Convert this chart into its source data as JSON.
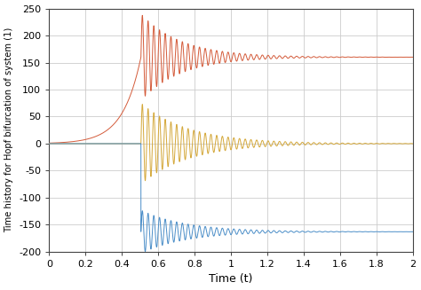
{
  "title": "",
  "xlabel": "Time (t)",
  "ylabel": "Time history for Hopf bifurcation of system (1)",
  "xlim": [
    0,
    2
  ],
  "ylim": [
    -200,
    250
  ],
  "xticks": [
    0,
    0.2,
    0.4,
    0.6,
    0.8,
    1.0,
    1.2,
    1.4,
    1.6,
    1.8,
    2.0
  ],
  "yticks": [
    -200,
    -150,
    -100,
    -50,
    0,
    50,
    100,
    150,
    200,
    250
  ],
  "color_red": "#D45B3A",
  "color_yellow": "#D4A83A",
  "color_blue": "#4B8EC8",
  "background": "#ffffff",
  "grid_color": "#cccccc",
  "t_start": 0.0,
  "t_end": 2.0,
  "n_points": 20000,
  "omega": 200.0,
  "trigger": 0.505,
  "red_steady": 160.0,
  "red_init_amp": 80.0,
  "red_decay": 4.5,
  "red_pre_start": 0.0,
  "red_pre_rate": 10.0,
  "yellow_steady": 0.0,
  "yellow_init_amp": 75.0,
  "yellow_decay": 3.8,
  "blue_steady": -163.0,
  "blue_init_amp": 40.0,
  "blue_decay": 4.0,
  "figwidth": 4.74,
  "figheight": 3.27,
  "dpi": 100
}
